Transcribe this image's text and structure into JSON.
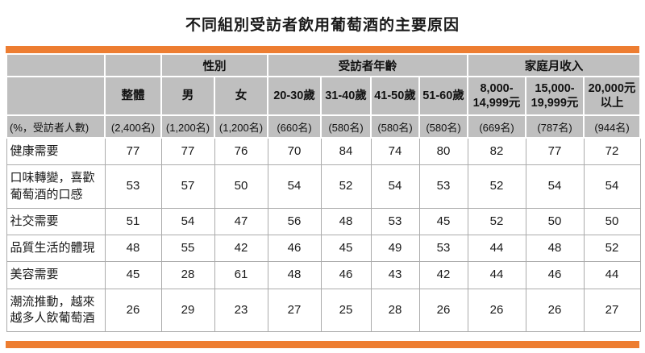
{
  "title": "不同組別受訪者飲用葡萄酒的主要原因",
  "colors": {
    "accent": "#ED7D31",
    "header_bg": "#BFBFBF"
  },
  "chart_data": {
    "type": "table",
    "title": "不同組別受訪者飲用葡萄酒的主要原因",
    "row_label_header": "(%，受訪者人數)",
    "column_groups": [
      {
        "label": "",
        "span": 1
      },
      {
        "label": "",
        "span": 1
      },
      {
        "label": "性別",
        "span": 2
      },
      {
        "label": "受訪者年齡",
        "span": 4
      },
      {
        "label": "家庭月收入",
        "span": 3
      }
    ],
    "columns": [
      {
        "label": "整體",
        "count": "(2,400名)"
      },
      {
        "label": "男",
        "count": "(1,200名)"
      },
      {
        "label": "女",
        "count": "(1,200名)"
      },
      {
        "label": "20-30歲",
        "count": "(660名)"
      },
      {
        "label": "31-40歲",
        "count": "(580名)"
      },
      {
        "label": "41-50歲",
        "count": "(580名)"
      },
      {
        "label": "51-60歲",
        "count": "(580名)"
      },
      {
        "label": "8,000-\n14,999元",
        "count": "(669名)"
      },
      {
        "label": "15,000-\n19,999元",
        "count": "(787名)"
      },
      {
        "label": "20,000元\n以上",
        "count": "(944名)"
      }
    ],
    "rows": [
      {
        "label": "健康需要",
        "values": [
          77,
          77,
          76,
          70,
          84,
          74,
          80,
          82,
          77,
          72
        ]
      },
      {
        "label": "口味轉變，喜歡葡萄酒的口感",
        "values": [
          53,
          57,
          50,
          54,
          52,
          54,
          53,
          52,
          54,
          54
        ]
      },
      {
        "label": "社交需要",
        "values": [
          51,
          54,
          47,
          56,
          48,
          53,
          45,
          52,
          50,
          50
        ]
      },
      {
        "label": "品質生活的體現",
        "values": [
          48,
          55,
          42,
          46,
          45,
          49,
          53,
          44,
          48,
          52
        ]
      },
      {
        "label": "美容需要",
        "values": [
          45,
          28,
          61,
          48,
          46,
          43,
          42,
          44,
          46,
          44
        ]
      },
      {
        "label": "潮流推動，越來越多人飲葡萄酒",
        "values": [
          26,
          29,
          23,
          27,
          25,
          28,
          26,
          26,
          26,
          27
        ]
      }
    ]
  }
}
